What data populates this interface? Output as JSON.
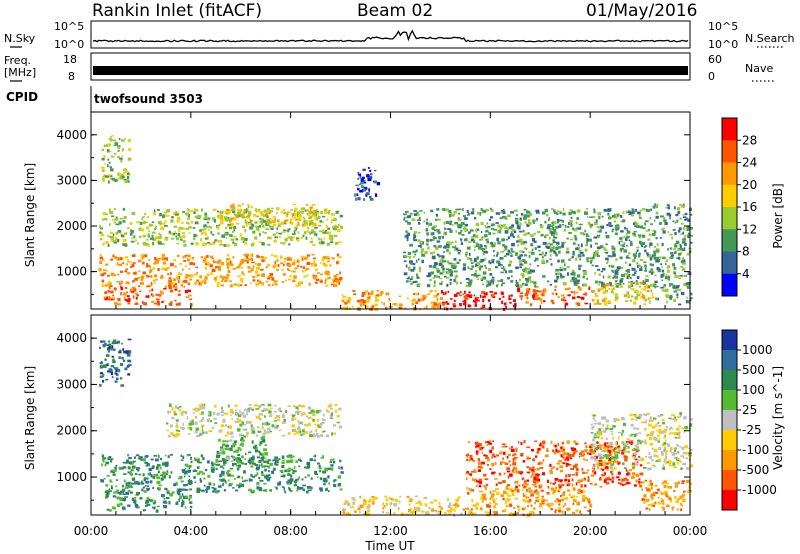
{
  "header": {
    "station": "Rankin Inlet (fitACF)",
    "beam": "Beam 02",
    "date": "01/May/2016"
  },
  "strip": {
    "nsky_label": "N.Sky",
    "nsearch_label": "N.Search",
    "freq_label_top": "Freq.",
    "freq_label_unit": "[MHz]",
    "nave_label": "Nave",
    "cpid_label": "CPID",
    "noise_left_ticks": [
      "10^5",
      "10^0"
    ],
    "noise_right_ticks": [
      "10^5",
      "10^0"
    ],
    "freq_left_ticks": [
      "18",
      "8"
    ],
    "nave_right_ticks": [
      "60",
      "0"
    ],
    "cpid_value": "twofsound 3503"
  },
  "chart_data": [
    {
      "type": "heatmap",
      "name": "Power",
      "ylabel": "Slant Range [km]",
      "xlabel": "",
      "colorbar_label": "Power [dB]",
      "colorbar_ticks": [
        "28",
        "24",
        "20",
        "16",
        "12",
        "8",
        "4"
      ],
      "colorbar_colors": [
        "#ff0000",
        "#ff5500",
        "#ff9900",
        "#ffcc00",
        "#99cc33",
        "#449955",
        "#336699",
        "#0000ff"
      ],
      "y_ticks": [
        "4000",
        "3000",
        "2000",
        "1000"
      ],
      "ylim": [
        180,
        4500
      ],
      "xlim": [
        0,
        24
      ],
      "x_tick_labels": [
        "00:00",
        "04:00",
        "08:00",
        "12:00",
        "16:00",
        "20:00",
        "00:00"
      ],
      "regions": [
        {
          "x0": 0.3,
          "x1": 10.0,
          "y0": 700,
          "y1": 1400,
          "level": 5
        },
        {
          "x0": 0.3,
          "x1": 10.0,
          "y0": 1600,
          "y1": 2400,
          "level": 3
        },
        {
          "x0": 5.0,
          "x1": 9.0,
          "y0": 2000,
          "y1": 2500,
          "level": 4
        },
        {
          "x0": 0.5,
          "x1": 4.0,
          "y0": 300,
          "y1": 700,
          "level": 6
        },
        {
          "x0": 10.0,
          "x1": 14.0,
          "y0": 200,
          "y1": 600,
          "level": 5
        },
        {
          "x0": 14.0,
          "x1": 17.0,
          "y0": 200,
          "y1": 600,
          "level": 7
        },
        {
          "x0": 17.0,
          "x1": 20.0,
          "y0": 300,
          "y1": 700,
          "level": 6
        },
        {
          "x0": 12.5,
          "x1": 22.5,
          "y0": 700,
          "y1": 2400,
          "level": 2
        },
        {
          "x0": 20.0,
          "x1": 22.5,
          "y0": 300,
          "y1": 800,
          "level": 4
        },
        {
          "x0": 22.5,
          "x1": 24.0,
          "y0": 300,
          "y1": 2500,
          "level": 2
        },
        {
          "x0": 0.3,
          "x1": 1.5,
          "y0": 3000,
          "y1": 4000,
          "level": 3
        },
        {
          "x0": 10.5,
          "x1": 11.5,
          "y0": 2600,
          "y1": 3300,
          "level": 1
        }
      ]
    },
    {
      "type": "heatmap",
      "name": "Velocity",
      "ylabel": "Slant Range [km]",
      "xlabel": "Time UT",
      "colorbar_label": "Velocity [m s^-1]",
      "colorbar_ticks": [
        "1000",
        "500",
        "100",
        "25",
        "-25",
        "-100",
        "-500",
        "-1000"
      ],
      "colorbar_colors": [
        "#1a33a0",
        "#2e6fa0",
        "#2e8a4a",
        "#55bb33",
        "#bfbfbf",
        "#ffcc00",
        "#ff9900",
        "#ff5500",
        "#ff0000"
      ],
      "y_ticks": [
        "4000",
        "3000",
        "2000",
        "1000"
      ],
      "ylim": [
        180,
        4500
      ],
      "xlim": [
        0,
        24
      ],
      "x_tick_labels": [
        "00:00",
        "04:00",
        "08:00",
        "12:00",
        "16:00",
        "20:00",
        "00:00"
      ],
      "regions": [
        {
          "x0": 0.3,
          "x1": 10.0,
          "y0": 700,
          "y1": 1500,
          "level": 2
        },
        {
          "x0": 3.0,
          "x1": 10.0,
          "y0": 1900,
          "y1": 2600,
          "level": 4
        },
        {
          "x0": 0.5,
          "x1": 4.0,
          "y0": 300,
          "y1": 700,
          "level": 2
        },
        {
          "x0": 5.0,
          "x1": 7.0,
          "y0": 1300,
          "y1": 1900,
          "level": 3
        },
        {
          "x0": 10.0,
          "x1": 15.0,
          "y0": 200,
          "y1": 600,
          "level": 5
        },
        {
          "x0": 15.0,
          "x1": 20.0,
          "y0": 200,
          "y1": 800,
          "level": 6
        },
        {
          "x0": 15.0,
          "x1": 22.0,
          "y0": 800,
          "y1": 1800,
          "level": 7
        },
        {
          "x0": 20.0,
          "x1": 24.0,
          "y0": 1200,
          "y1": 2400,
          "level": 4
        },
        {
          "x0": 22.0,
          "x1": 24.0,
          "y0": 300,
          "y1": 1000,
          "level": 6
        },
        {
          "x0": 0.3,
          "x1": 1.5,
          "y0": 3000,
          "y1": 4000,
          "level": 1
        }
      ]
    }
  ]
}
